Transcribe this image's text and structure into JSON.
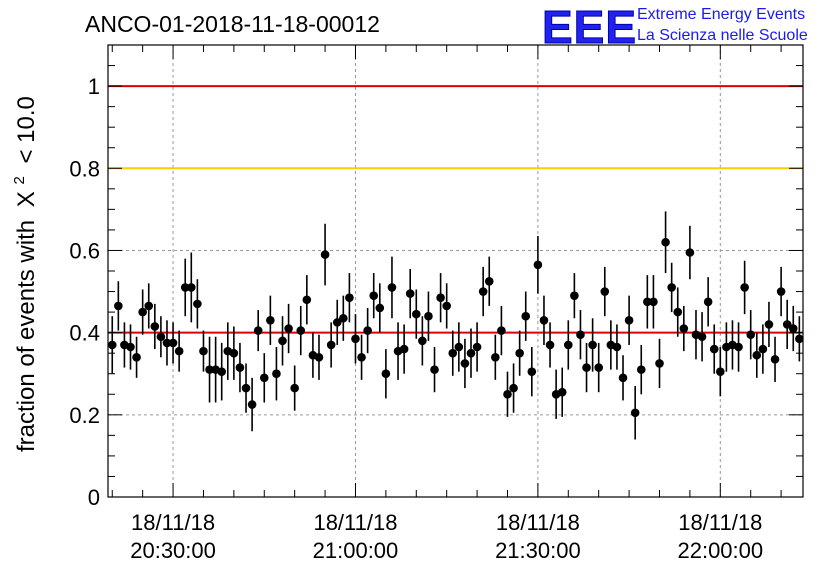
{
  "header": {
    "title": "ANCO-01-2018-11-18-00012",
    "logo_mark": "EEE",
    "logo_line1": "Extreme Energy Events",
    "logo_line2": "La Scienza nelle Scuole"
  },
  "colors": {
    "logo": "#2222ee",
    "ref_red": "#dd0000",
    "ref_orange": "#ffcc00",
    "points": "#000000",
    "grid": "#999999"
  },
  "chart_data": {
    "type": "scatter",
    "title": "ANCO-01-2018-11-18-00012",
    "ylabel": "fraction of events with",
    "ylabel_symbol": "X",
    "ylabel_exponent": "2",
    "ylabel_threshold": "< 10.0",
    "xlabel": "",
    "ylim": [
      0,
      1.1
    ],
    "x_unit": "minutes after 18/11/18 20:30:00",
    "xlim": [
      -10.7,
      103.6
    ],
    "grid": true,
    "legend": "none",
    "y_ticks": [
      {
        "value": 0,
        "label": "0"
      },
      {
        "value": 0.2,
        "label": "0.2"
      },
      {
        "value": 0.4,
        "label": "0.4"
      },
      {
        "value": 0.6,
        "label": "0.6"
      },
      {
        "value": 0.8,
        "label": "0.8"
      },
      {
        "value": 1.0,
        "label": "1"
      }
    ],
    "x_ticks": [
      {
        "value": 0,
        "date": "18/11/18",
        "time": "20:30:00"
      },
      {
        "value": 30,
        "date": "18/11/18",
        "time": "21:00:00"
      },
      {
        "value": 60,
        "date": "18/11/18",
        "time": "21:30:00"
      },
      {
        "value": 90,
        "date": "18/11/18",
        "time": "22:00:00"
      }
    ],
    "reference_lines": [
      {
        "y": 1.0,
        "color": "#dd0000"
      },
      {
        "y": 0.8,
        "color": "#ffcc00"
      },
      {
        "y": 0.4,
        "color": "#dd0000"
      }
    ],
    "series": [
      {
        "x_start": -10.0,
        "x_step": 1.0,
        "values": [
          0.37,
          0.465,
          0.37,
          0.365,
          0.34,
          0.45,
          0.465,
          0.415,
          0.39,
          0.375,
          0.375,
          0.355,
          0.51,
          0.51,
          0.47,
          0.355,
          0.31,
          0.31,
          0.305,
          0.355,
          0.35,
          0.315,
          0.265,
          0.225,
          0.405,
          0.29,
          0.43,
          0.3,
          0.38,
          0.41,
          0.265,
          0.405,
          0.48,
          0.345,
          0.34,
          0.59,
          0.37,
          0.425,
          0.435,
          0.485,
          0.385,
          0.34,
          0.405,
          0.49,
          0.46,
          0.3,
          0.51,
          0.355,
          0.36,
          0.495,
          0.445,
          0.38,
          0.44,
          0.31,
          0.485,
          0.465,
          0.35,
          0.365,
          0.325,
          0.35,
          0.365,
          0.5,
          0.525,
          0.34,
          0.405,
          0.25,
          0.265,
          0.35,
          0.44,
          0.305,
          0.565,
          0.43,
          0.37,
          0.25,
          0.255,
          0.37,
          0.49,
          0.395,
          0.315,
          0.37,
          0.315,
          0.5,
          0.37,
          0.365,
          0.29,
          0.43,
          0.205,
          0.31,
          0.475,
          0.475,
          0.325,
          0.62,
          0.51,
          0.45,
          0.41,
          0.595,
          0.395,
          0.39,
          0.475,
          0.36,
          0.305,
          0.365,
          0.37,
          0.365,
          0.51,
          0.395,
          0.345,
          0.36,
          0.42,
          0.335,
          0.5,
          0.42,
          0.41,
          0.385
        ],
        "errors": [
          0.07,
          0.06,
          0.055,
          0.055,
          0.05,
          0.055,
          0.055,
          0.055,
          0.05,
          0.055,
          0.05,
          0.05,
          0.07,
          0.085,
          0.06,
          0.05,
          0.08,
          0.08,
          0.07,
          0.07,
          0.065,
          0.06,
          0.06,
          0.065,
          0.05,
          0.06,
          0.06,
          0.065,
          0.06,
          0.06,
          0.055,
          0.06,
          0.06,
          0.055,
          0.055,
          0.075,
          0.055,
          0.055,
          0.055,
          0.06,
          0.06,
          0.055,
          0.055,
          0.055,
          0.06,
          0.06,
          0.075,
          0.07,
          0.06,
          0.06,
          0.06,
          0.06,
          0.06,
          0.055,
          0.06,
          0.055,
          0.055,
          0.06,
          0.06,
          0.06,
          0.06,
          0.06,
          0.06,
          0.055,
          0.06,
          0.055,
          0.06,
          0.055,
          0.06,
          0.06,
          0.07,
          0.06,
          0.055,
          0.06,
          0.06,
          0.06,
          0.055,
          0.06,
          0.06,
          0.065,
          0.06,
          0.06,
          0.06,
          0.055,
          0.055,
          0.06,
          0.065,
          0.06,
          0.065,
          0.065,
          0.06,
          0.075,
          0.06,
          0.06,
          0.055,
          0.065,
          0.06,
          0.06,
          0.06,
          0.06,
          0.06,
          0.06,
          0.06,
          0.06,
          0.065,
          0.06,
          0.055,
          0.06,
          0.055,
          0.055,
          0.06,
          0.06,
          0.055,
          0.055
        ]
      }
    ]
  }
}
